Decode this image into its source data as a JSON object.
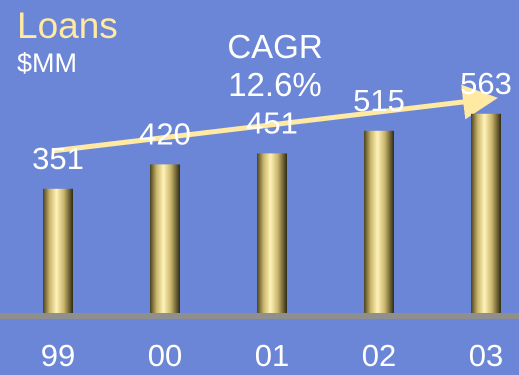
{
  "chart_data": {
    "type": "bar",
    "title": "Loans",
    "subtitle": "$MM",
    "categories": [
      "99",
      "00",
      "01",
      "02",
      "03"
    ],
    "values": [
      351,
      420,
      451,
      515,
      563
    ],
    "ylim": [
      0,
      650
    ],
    "annotation": {
      "label": "CAGR",
      "value": "12.6%"
    },
    "grid": false,
    "legend": "none"
  },
  "colors": {
    "background": "#6b86d6",
    "title": "#ffe9a3",
    "bar_light": "#fff0b0",
    "bar_mid": "#d9c47a",
    "bar_dark": "#3a3418",
    "baseline": "#8f8f8f",
    "arrow": "#ffe9a3"
  }
}
